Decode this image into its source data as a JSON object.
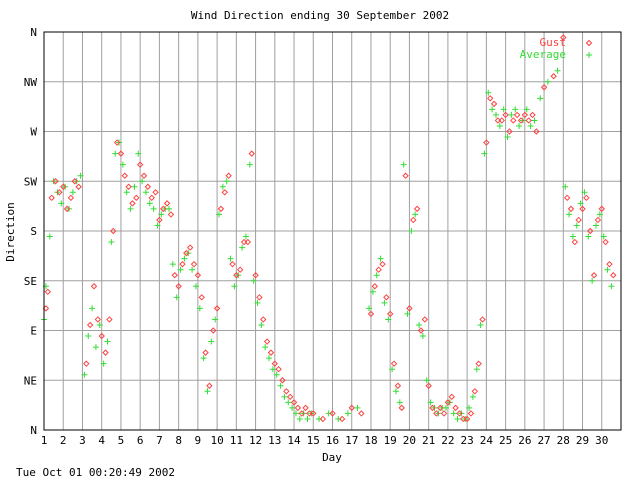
{
  "chart_data": {
    "type": "scatter",
    "title": "Wind Direction ending 30 September 2002",
    "xlabel": "Day",
    "ylabel": "Direction",
    "footer": "Tue Oct 01 00:20:49 2002",
    "xlim": [
      1,
      31
    ],
    "ylim": [
      0,
      360
    ],
    "grid": true,
    "legend_position": "top-right",
    "x_ticks": [
      1,
      2,
      3,
      4,
      5,
      6,
      7,
      8,
      9,
      10,
      11,
      12,
      13,
      14,
      15,
      16,
      17,
      18,
      19,
      20,
      21,
      22,
      23,
      24,
      25,
      26,
      27,
      28,
      29,
      30
    ],
    "x_tick_labels": [
      "1",
      "2",
      "3",
      "4",
      "5",
      "6",
      "7",
      "8",
      "9",
      "10",
      "11",
      "12",
      "13",
      "14",
      "15",
      "16",
      "17",
      "18",
      "19",
      "20",
      "21",
      "22",
      "23",
      "24",
      "25",
      "26",
      "27",
      "28",
      "29",
      "30"
    ],
    "y_ticks": [
      0,
      45,
      90,
      135,
      180,
      225,
      270,
      315,
      360
    ],
    "y_tick_labels": [
      "N",
      "NE",
      "E",
      "SE",
      "S",
      "SW",
      "W",
      "NW",
      "N"
    ],
    "colors": {
      "gust": "#ff4040",
      "average": "#33dd33"
    },
    "series": [
      {
        "name": "Gust",
        "marker": "diamond",
        "points": [
          [
            1.1,
            110
          ],
          [
            1.2,
            125
          ],
          [
            1.4,
            210
          ],
          [
            1.6,
            225
          ],
          [
            1.8,
            215
          ],
          [
            2.0,
            220
          ],
          [
            2.2,
            200
          ],
          [
            2.4,
            210
          ],
          [
            2.6,
            225
          ],
          [
            2.8,
            220
          ],
          [
            3.2,
            60
          ],
          [
            3.4,
            95
          ],
          [
            3.6,
            130
          ],
          [
            3.8,
            100
          ],
          [
            4.0,
            85
          ],
          [
            4.2,
            70
          ],
          [
            4.4,
            100
          ],
          [
            4.6,
            180
          ],
          [
            4.8,
            260
          ],
          [
            5.0,
            250
          ],
          [
            5.2,
            230
          ],
          [
            5.4,
            220
          ],
          [
            5.6,
            205
          ],
          [
            5.8,
            210
          ],
          [
            6.0,
            240
          ],
          [
            6.2,
            230
          ],
          [
            6.4,
            220
          ],
          [
            6.6,
            210
          ],
          [
            6.8,
            215
          ],
          [
            7.0,
            190
          ],
          [
            7.2,
            200
          ],
          [
            7.4,
            205
          ],
          [
            7.6,
            195
          ],
          [
            7.8,
            140
          ],
          [
            8.0,
            130
          ],
          [
            8.2,
            150
          ],
          [
            8.4,
            160
          ],
          [
            8.6,
            165
          ],
          [
            8.8,
            150
          ],
          [
            9.0,
            140
          ],
          [
            9.2,
            120
          ],
          [
            9.4,
            70
          ],
          [
            9.6,
            40
          ],
          [
            9.8,
            90
          ],
          [
            10.0,
            110
          ],
          [
            10.2,
            200
          ],
          [
            10.4,
            215
          ],
          [
            10.6,
            230
          ],
          [
            10.8,
            150
          ],
          [
            11.0,
            140
          ],
          [
            11.2,
            145
          ],
          [
            11.4,
            170
          ],
          [
            11.6,
            170
          ],
          [
            11.8,
            250
          ],
          [
            12.0,
            140
          ],
          [
            12.2,
            120
          ],
          [
            12.4,
            100
          ],
          [
            12.6,
            80
          ],
          [
            12.8,
            70
          ],
          [
            13.0,
            60
          ],
          [
            13.2,
            55
          ],
          [
            13.4,
            45
          ],
          [
            13.6,
            35
          ],
          [
            13.8,
            30
          ],
          [
            14.0,
            25
          ],
          [
            14.2,
            20
          ],
          [
            14.4,
            15
          ],
          [
            14.6,
            20
          ],
          [
            14.8,
            15
          ],
          [
            15.0,
            15
          ],
          [
            15.5,
            10
          ],
          [
            16.0,
            15
          ],
          [
            16.5,
            10
          ],
          [
            17.0,
            20
          ],
          [
            17.5,
            15
          ],
          [
            18.0,
            105
          ],
          [
            18.2,
            130
          ],
          [
            18.4,
            145
          ],
          [
            18.6,
            150
          ],
          [
            18.8,
            120
          ],
          [
            19.0,
            105
          ],
          [
            19.2,
            60
          ],
          [
            19.4,
            40
          ],
          [
            19.6,
            20
          ],
          [
            19.8,
            230
          ],
          [
            20.0,
            110
          ],
          [
            20.2,
            190
          ],
          [
            20.4,
            200
          ],
          [
            20.6,
            90
          ],
          [
            20.8,
            100
          ],
          [
            21.0,
            40
          ],
          [
            21.2,
            20
          ],
          [
            21.4,
            15
          ],
          [
            21.6,
            20
          ],
          [
            21.8,
            15
          ],
          [
            22.0,
            25
          ],
          [
            22.2,
            30
          ],
          [
            22.4,
            20
          ],
          [
            22.6,
            15
          ],
          [
            22.8,
            10
          ],
          [
            23.0,
            10
          ],
          [
            23.2,
            15
          ],
          [
            23.4,
            35
          ],
          [
            23.6,
            60
          ],
          [
            23.8,
            100
          ],
          [
            24.0,
            260
          ],
          [
            24.2,
            300
          ],
          [
            24.4,
            295
          ],
          [
            24.6,
            280
          ],
          [
            24.8,
            280
          ],
          [
            25.0,
            285
          ],
          [
            25.2,
            270
          ],
          [
            25.4,
            280
          ],
          [
            25.6,
            285
          ],
          [
            25.8,
            280
          ],
          [
            26.0,
            285
          ],
          [
            26.2,
            280
          ],
          [
            26.4,
            285
          ],
          [
            26.6,
            270
          ],
          [
            27.0,
            310
          ],
          [
            27.5,
            320
          ],
          [
            28.0,
            355
          ],
          [
            28.2,
            210
          ],
          [
            28.4,
            200
          ],
          [
            28.6,
            170
          ],
          [
            28.8,
            190
          ],
          [
            29.0,
            200
          ],
          [
            29.2,
            210
          ],
          [
            29.4,
            180
          ],
          [
            29.6,
            140
          ],
          [
            29.8,
            190
          ],
          [
            30.0,
            200
          ],
          [
            30.2,
            170
          ],
          [
            30.4,
            150
          ],
          [
            30.6,
            140
          ]
        ]
      },
      {
        "name": "Average",
        "marker": "plus",
        "points": [
          [
            1.0,
            100
          ],
          [
            1.1,
            130
          ],
          [
            1.3,
            175
          ],
          [
            1.5,
            225
          ],
          [
            1.7,
            215
          ],
          [
            1.9,
            205
          ],
          [
            2.1,
            220
          ],
          [
            2.3,
            200
          ],
          [
            2.5,
            215
          ],
          [
            2.7,
            225
          ],
          [
            2.9,
            230
          ],
          [
            3.1,
            50
          ],
          [
            3.3,
            85
          ],
          [
            3.5,
            110
          ],
          [
            3.7,
            75
          ],
          [
            3.9,
            95
          ],
          [
            4.1,
            60
          ],
          [
            4.3,
            80
          ],
          [
            4.5,
            170
          ],
          [
            4.7,
            250
          ],
          [
            4.9,
            260
          ],
          [
            5.1,
            240
          ],
          [
            5.3,
            215
          ],
          [
            5.5,
            200
          ],
          [
            5.7,
            220
          ],
          [
            5.9,
            250
          ],
          [
            6.1,
            225
          ],
          [
            6.3,
            215
          ],
          [
            6.5,
            205
          ],
          [
            6.7,
            200
          ],
          [
            6.9,
            185
          ],
          [
            7.1,
            195
          ],
          [
            7.3,
            200
          ],
          [
            7.5,
            200
          ],
          [
            7.7,
            150
          ],
          [
            7.9,
            120
          ],
          [
            8.1,
            145
          ],
          [
            8.3,
            155
          ],
          [
            8.5,
            160
          ],
          [
            8.7,
            145
          ],
          [
            8.9,
            130
          ],
          [
            9.1,
            110
          ],
          [
            9.3,
            65
          ],
          [
            9.5,
            35
          ],
          [
            9.7,
            80
          ],
          [
            9.9,
            100
          ],
          [
            10.1,
            195
          ],
          [
            10.3,
            220
          ],
          [
            10.5,
            225
          ],
          [
            10.7,
            155
          ],
          [
            10.9,
            130
          ],
          [
            11.1,
            140
          ],
          [
            11.3,
            165
          ],
          [
            11.5,
            175
          ],
          [
            11.7,
            240
          ],
          [
            11.9,
            135
          ],
          [
            12.1,
            115
          ],
          [
            12.3,
            95
          ],
          [
            12.5,
            75
          ],
          [
            12.7,
            65
          ],
          [
            12.9,
            55
          ],
          [
            13.1,
            50
          ],
          [
            13.3,
            40
          ],
          [
            13.5,
            30
          ],
          [
            13.7,
            25
          ],
          [
            13.9,
            20
          ],
          [
            14.1,
            15
          ],
          [
            14.3,
            10
          ],
          [
            14.5,
            15
          ],
          [
            14.7,
            10
          ],
          [
            14.9,
            15
          ],
          [
            15.3,
            10
          ],
          [
            15.8,
            15
          ],
          [
            16.3,
            10
          ],
          [
            16.8,
            15
          ],
          [
            17.3,
            20
          ],
          [
            17.9,
            110
          ],
          [
            18.1,
            125
          ],
          [
            18.3,
            140
          ],
          [
            18.5,
            155
          ],
          [
            18.7,
            115
          ],
          [
            18.9,
            100
          ],
          [
            19.1,
            55
          ],
          [
            19.3,
            35
          ],
          [
            19.5,
            25
          ],
          [
            19.7,
            240
          ],
          [
            19.9,
            105
          ],
          [
            20.1,
            180
          ],
          [
            20.3,
            195
          ],
          [
            20.5,
            95
          ],
          [
            20.7,
            85
          ],
          [
            20.9,
            45
          ],
          [
            21.1,
            25
          ],
          [
            21.3,
            20
          ],
          [
            21.5,
            15
          ],
          [
            21.7,
            20
          ],
          [
            21.9,
            20
          ],
          [
            22.1,
            25
          ],
          [
            22.3,
            15
          ],
          [
            22.5,
            10
          ],
          [
            22.7,
            15
          ],
          [
            22.9,
            10
          ],
          [
            23.1,
            20
          ],
          [
            23.3,
            30
          ],
          [
            23.5,
            55
          ],
          [
            23.7,
            95
          ],
          [
            23.9,
            250
          ],
          [
            24.1,
            305
          ],
          [
            24.3,
            290
          ],
          [
            24.5,
            285
          ],
          [
            24.7,
            275
          ],
          [
            24.9,
            290
          ],
          [
            25.1,
            265
          ],
          [
            25.3,
            285
          ],
          [
            25.5,
            290
          ],
          [
            25.7,
            275
          ],
          [
            25.9,
            280
          ],
          [
            26.1,
            290
          ],
          [
            26.3,
            275
          ],
          [
            26.5,
            280
          ],
          [
            26.8,
            300
          ],
          [
            27.2,
            315
          ],
          [
            27.7,
            325
          ],
          [
            28.1,
            220
          ],
          [
            28.3,
            195
          ],
          [
            28.5,
            175
          ],
          [
            28.7,
            185
          ],
          [
            28.9,
            205
          ],
          [
            29.1,
            215
          ],
          [
            29.3,
            175
          ],
          [
            29.5,
            135
          ],
          [
            29.7,
            185
          ],
          [
            29.9,
            195
          ],
          [
            30.1,
            175
          ],
          [
            30.3,
            145
          ],
          [
            30.5,
            130
          ]
        ]
      }
    ]
  }
}
